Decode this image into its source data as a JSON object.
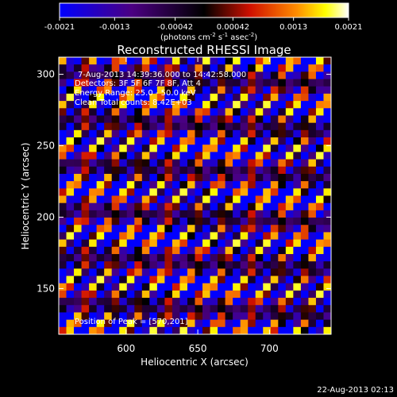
{
  "chart_data": {
    "type": "heatmap",
    "title": "Reconstructed RHESSI Image",
    "xlabel": "Heliocentric X (arcsec)",
    "ylabel": "Heliocentric Y (arcsec)",
    "xlim": [
      553,
      743
    ],
    "ylim": [
      118,
      312
    ],
    "x_ticks": [
      600,
      650,
      700
    ],
    "y_ticks": [
      150,
      200,
      250,
      300
    ],
    "colorbar": {
      "min": -0.0021,
      "max": 0.0021,
      "ticks": [
        "-0.0021",
        "-0.0013",
        "-0.00042",
        "0.00042",
        "0.0013",
        "0.0021"
      ],
      "units_label": "(photons cm",
      "units_sup1": "-2",
      "units_mid1": " s",
      "units_sup2": "-1",
      "units_mid2": " asec",
      "units_sup3": "-2",
      "units_end": ")"
    },
    "annotations": {
      "time_range": "7-Aug-2013 14:39:36.000 to 14:42:58.000",
      "detectors": "Detectors: 3F 5F 6F 7F 8F, Att 4",
      "energy_range": "Energy Range: 25.0 - 50.0 keV",
      "clean": "Clean   Total counts: 8.42E+03",
      "peak": "Position of Peak = [570,201]"
    },
    "pattern": {
      "description_values": "periodic diagonal stripe artifact",
      "grid_nx": 36,
      "grid_ny": 38
    }
  },
  "footer": {
    "timestamp": "22-Aug-2013 02:13"
  }
}
